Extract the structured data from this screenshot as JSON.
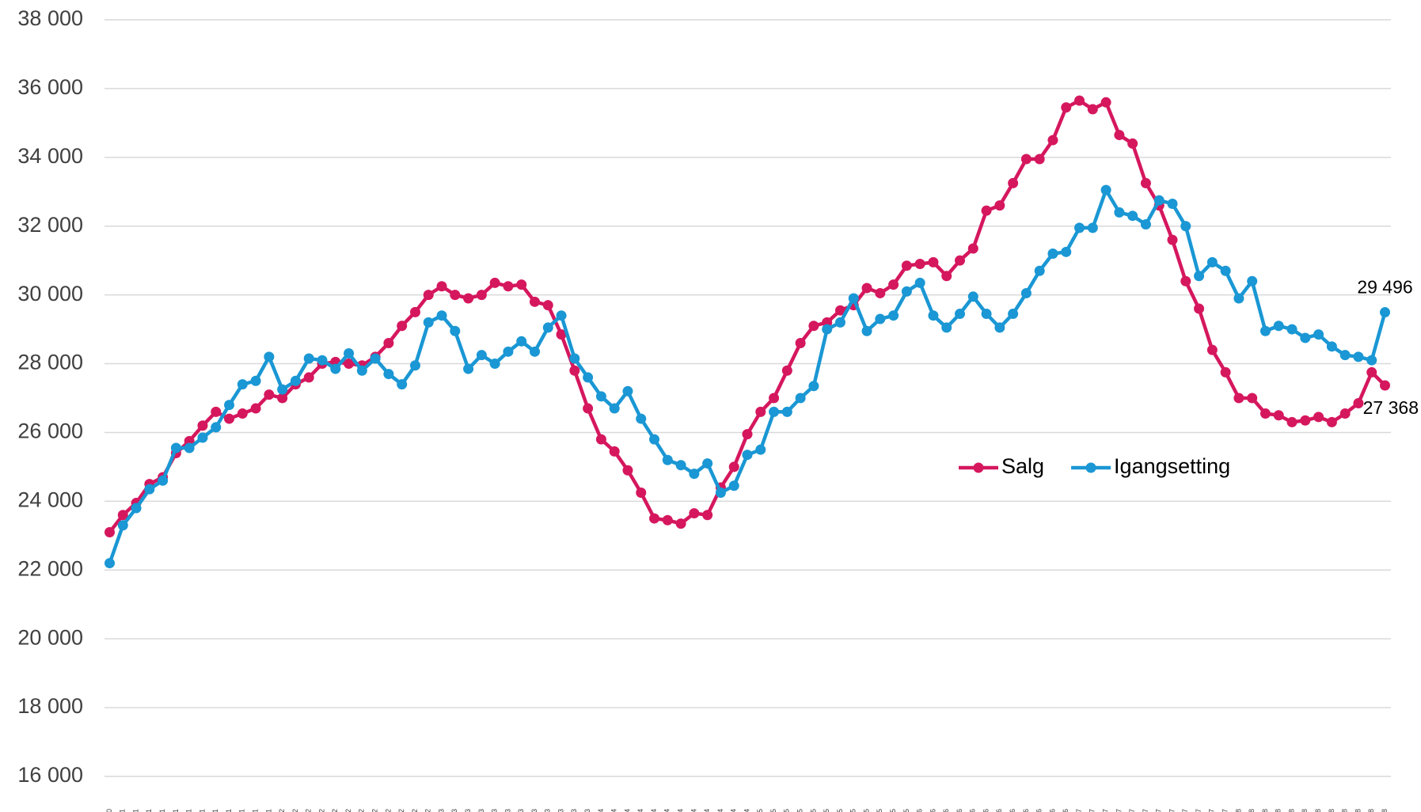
{
  "chart_data": {
    "type": "line",
    "categories": [
      "des.10",
      "jan.11",
      "feb.11",
      "mar.11",
      "apr.11",
      "mai.11",
      "jun.11",
      "jul.11",
      "aug.11",
      "sep.11",
      "okt.11",
      "nov.11",
      "des.11",
      "jan.12",
      "feb.12",
      "mar.12",
      "apr.12",
      "mai.12",
      "jun.12",
      "jul.12",
      "aug.12",
      "sep.12",
      "okt.12",
      "nov.12",
      "des.12",
      "jan.13",
      "feb.13",
      "mar.13",
      "apr.13",
      "mai.13",
      "jun.13",
      "jul.13",
      "aug.13",
      "sep.13",
      "okt.13",
      "nov.13",
      "des.13",
      "jan.14",
      "feb.14",
      "mar.14",
      "apr.14",
      "mai.14",
      "jun.14",
      "jul.14",
      "aug.14",
      "sep.14",
      "okt.14",
      "nov.14",
      "des.14",
      "jan.15",
      "feb.15",
      "mar.15",
      "apr.15",
      "mai.15",
      "jun.15",
      "jul.15",
      "aug.15",
      "sep.15",
      "okt.15",
      "nov.15",
      "des.15",
      "jan.16",
      "feb.16",
      "mar.16",
      "apr.16",
      "mai.16",
      "jun.16",
      "jul.16",
      "aug.16",
      "sep.16",
      "okt.16",
      "nov.16",
      "des.16",
      "jan.17",
      "feb.17",
      "mar.17",
      "apr.17",
      "mai.17",
      "jun.17",
      "jul.17",
      "aug.17",
      "sep.17",
      "okt.17",
      "nov.17",
      "des.17",
      "jan.18",
      "feb.18",
      "mar.18",
      "apr.18",
      "mai.18",
      "jun.18",
      "jul.18",
      "aug.18",
      "sep.18",
      "okt.18",
      "nov.18",
      "des.18"
    ],
    "series": [
      {
        "name": "Salg",
        "color": "#d5175e",
        "values": [
          23100,
          23600,
          23950,
          24500,
          24700,
          25400,
          25750,
          26200,
          26600,
          26400,
          26550,
          26700,
          27100,
          27000,
          27400,
          27600,
          28000,
          28050,
          28000,
          27950,
          28200,
          28600,
          29100,
          29500,
          30000,
          30250,
          30000,
          29900,
          30000,
          30350,
          30250,
          30300,
          29800,
          29700,
          28850,
          27800,
          26700,
          25800,
          25450,
          24900,
          24250,
          23500,
          23450,
          23350,
          23650,
          23600,
          24400,
          25000,
          25950,
          26600,
          27000,
          27800,
          28600,
          29100,
          29200,
          29550,
          29700,
          30200,
          30050,
          30300,
          30850,
          30900,
          30950,
          30550,
          31000,
          31350,
          32450,
          32600,
          33250,
          33950,
          33950,
          34500,
          35450,
          35650,
          35400,
          35600,
          34650,
          34400,
          33250,
          32600,
          31600,
          30400,
          29600,
          28400,
          27750,
          27000,
          27000,
          26550,
          26500,
          26300,
          26350,
          26450,
          26300,
          26550,
          26850,
          27750,
          27368
        ],
        "value_labels": [
          null,
          null,
          null,
          null,
          null,
          null,
          null,
          null,
          null,
          null,
          null,
          null,
          null,
          null,
          null,
          null,
          null,
          null,
          null,
          null,
          null,
          null,
          null,
          null,
          null,
          null,
          null,
          null,
          null,
          null,
          null,
          null,
          null,
          null,
          null,
          null,
          null,
          null,
          null,
          null,
          null,
          null,
          null,
          null,
          null,
          null,
          null,
          null,
          null,
          null,
          null,
          null,
          null,
          null,
          null,
          null,
          null,
          null,
          null,
          null,
          null,
          null,
          null,
          null,
          null,
          null,
          null,
          null,
          null,
          null,
          null,
          null,
          null,
          null,
          null,
          null,
          null,
          null,
          null,
          null,
          null,
          null,
          null,
          null,
          null,
          null,
          null,
          null,
          null,
          null,
          null,
          null,
          null,
          null,
          null,
          null,
          "27 368"
        ]
      },
      {
        "name": "Igangsetting",
        "color": "#1a97d4",
        "values": [
          22200,
          23300,
          23800,
          24350,
          24600,
          25550,
          25550,
          25850,
          26150,
          26800,
          27400,
          27500,
          28200,
          27250,
          27500,
          28150,
          28100,
          27850,
          28300,
          27800,
          28150,
          27700,
          27400,
          27950,
          29200,
          29400,
          28950,
          27850,
          28250,
          28000,
          28350,
          28650,
          28350,
          29050,
          29400,
          28150,
          27600,
          27050,
          26700,
          27200,
          26400,
          25800,
          25200,
          25050,
          24800,
          25100,
          24250,
          24450,
          25350,
          25500,
          26600,
          26600,
          27000,
          27350,
          29000,
          29200,
          29900,
          28950,
          29300,
          29400,
          30100,
          30350,
          29400,
          29050,
          29450,
          29950,
          29450,
          29050,
          29450,
          30050,
          30700,
          31200,
          31250,
          31950,
          31950,
          33050,
          32400,
          32300,
          32050,
          32750,
          32650,
          32000,
          30550,
          30950,
          30700,
          29900,
          30400,
          28950,
          29100,
          29000,
          28750,
          28850,
          28500,
          28250,
          28200,
          28100,
          29496
        ],
        "value_labels": [
          null,
          null,
          null,
          null,
          null,
          null,
          null,
          null,
          null,
          null,
          null,
          null,
          null,
          null,
          null,
          null,
          null,
          null,
          null,
          null,
          null,
          null,
          null,
          null,
          null,
          null,
          null,
          null,
          null,
          null,
          null,
          null,
          null,
          null,
          null,
          null,
          null,
          null,
          null,
          null,
          null,
          null,
          null,
          null,
          null,
          null,
          null,
          null,
          null,
          null,
          null,
          null,
          null,
          null,
          null,
          null,
          null,
          null,
          null,
          null,
          null,
          null,
          null,
          null,
          null,
          null,
          null,
          null,
          null,
          null,
          null,
          null,
          null,
          null,
          null,
          null,
          null,
          null,
          null,
          null,
          null,
          null,
          null,
          null,
          null,
          null,
          null,
          null,
          null,
          null,
          null,
          null,
          null,
          null,
          null,
          null,
          "29 496"
        ]
      }
    ],
    "ylim": [
      16000,
      38000
    ],
    "yticks": [
      {
        "value": 16000,
        "label": "16 000"
      },
      {
        "value": 18000,
        "label": "18 000"
      },
      {
        "value": 20000,
        "label": "20 000"
      },
      {
        "value": 22000,
        "label": "22 000"
      },
      {
        "value": 24000,
        "label": "24 000"
      },
      {
        "value": 26000,
        "label": "26 000"
      },
      {
        "value": 28000,
        "label": "28 000"
      },
      {
        "value": 30000,
        "label": "30 000"
      },
      {
        "value": 32000,
        "label": "32 000"
      },
      {
        "value": 34000,
        "label": "34 000"
      },
      {
        "value": 36000,
        "label": "36 000"
      },
      {
        "value": 38000,
        "label": "38 000"
      }
    ],
    "grid": true,
    "legend": "right"
  }
}
